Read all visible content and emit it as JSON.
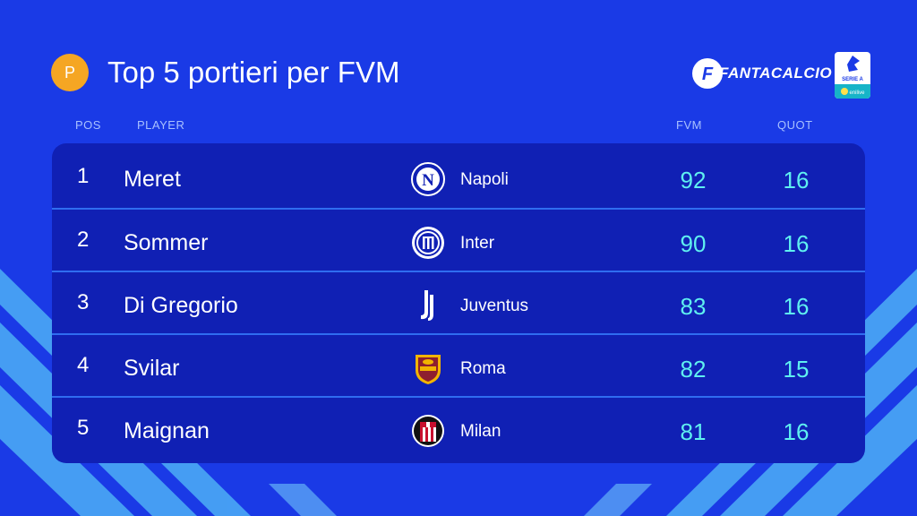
{
  "header": {
    "role_badge": "P",
    "title": "Top 5 portieri per FVM",
    "brand": "FANTACALCIO",
    "brand_mark": "F",
    "league": {
      "name": "SERIE A",
      "sponsor": "enilive"
    }
  },
  "columns": {
    "pos": "POS",
    "player": "PLAYER",
    "fvm": "FVM",
    "quot": "QUOT"
  },
  "rows": [
    {
      "pos": "1",
      "player": "Meret",
      "team": "Napoli",
      "crest": "napoli-crest-icon",
      "fvm": "92",
      "quot": "16"
    },
    {
      "pos": "2",
      "player": "Sommer",
      "team": "Inter",
      "crest": "inter-crest-icon",
      "fvm": "90",
      "quot": "16"
    },
    {
      "pos": "3",
      "player": "Di Gregorio",
      "team": "Juventus",
      "crest": "juventus-crest-icon",
      "fvm": "83",
      "quot": "16"
    },
    {
      "pos": "4",
      "player": "Svilar",
      "team": "Roma",
      "crest": "roma-crest-icon",
      "fvm": "82",
      "quot": "15"
    },
    {
      "pos": "5",
      "player": "Maignan",
      "team": "Milan",
      "crest": "milan-crest-icon",
      "fvm": "81",
      "quot": "16"
    }
  ],
  "colors": {
    "background": "#1a3ae6",
    "table": "#1020b4",
    "divider": "#2f6df0",
    "value": "#5ff0f0",
    "badge": "#f5a623",
    "stripe": "#4aa8f5"
  }
}
